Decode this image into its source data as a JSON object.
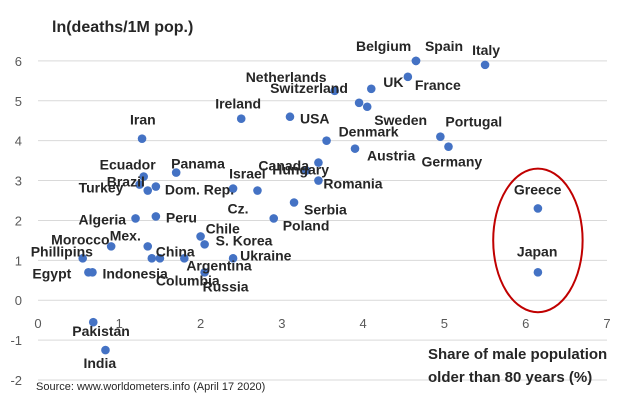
{
  "chart_data": {
    "type": "scatter",
    "ylabel": "ln(deaths/1M pop.)",
    "xlabel_lines": [
      "Share of male population",
      "older than 80 years (%)"
    ],
    "source": "Source: www.worldometers.info (April 17 2020)",
    "xlim": [
      0,
      7
    ],
    "ylim": [
      -2,
      7
    ],
    "x_ticks": [
      0,
      1,
      2,
      3,
      4,
      5,
      6,
      7
    ],
    "y_ticks": [
      -2,
      -1,
      0,
      1,
      2,
      3,
      4,
      5,
      6
    ],
    "grid": "horizontal",
    "marker_color": "#4472c4",
    "highlight_color": "#c00000",
    "highlight": {
      "label": "ellipse",
      "x_center": 6.15,
      "y_center": 1.5,
      "x_radius": 0.55,
      "y_radius": 1.8
    },
    "points": [
      {
        "label": "Belgium",
        "x": 4.65,
        "y": 6.0
      },
      {
        "label": "Spain",
        "x": 4.65,
        "y": 6.0
      },
      {
        "label": "Italy",
        "x": 5.5,
        "y": 5.9
      },
      {
        "label": "Netherlands",
        "x": 3.65,
        "y": 5.25
      },
      {
        "label": "France",
        "x": 4.55,
        "y": 5.6
      },
      {
        "label": "UK",
        "x": 4.1,
        "y": 5.3
      },
      {
        "label": "Switzerland",
        "x": 3.95,
        "y": 4.95
      },
      {
        "label": "Sweden",
        "x": 4.05,
        "y": 4.85
      },
      {
        "label": "Ireland",
        "x": 2.5,
        "y": 4.55
      },
      {
        "label": "USA",
        "x": 3.1,
        "y": 4.6
      },
      {
        "label": "Denmark",
        "x": 3.55,
        "y": 4.0
      },
      {
        "label": "Portugal",
        "x": 4.95,
        "y": 4.1
      },
      {
        "label": "Canada",
        "x": 3.45,
        "y": 3.45
      },
      {
        "label": "Austria",
        "x": 3.9,
        "y": 3.8
      },
      {
        "label": "Germany",
        "x": 5.05,
        "y": 3.85
      },
      {
        "label": "Iran",
        "x": 1.28,
        "y": 4.05
      },
      {
        "label": "Ecuador",
        "x": 1.3,
        "y": 3.1
      },
      {
        "label": "Panama",
        "x": 1.7,
        "y": 3.2
      },
      {
        "label": "Israel",
        "x": 2.4,
        "y": 2.8
      },
      {
        "label": "Turkey",
        "x": 1.25,
        "y": 2.9
      },
      {
        "label": "Dom. Rep.",
        "x": 1.45,
        "y": 2.85
      },
      {
        "label": "Hungary",
        "x": 3.3,
        "y": 3.25
      },
      {
        "label": "Romania",
        "x": 3.45,
        "y": 3.0
      },
      {
        "label": "Cz.",
        "x": 2.7,
        "y": 2.75
      },
      {
        "label": "Brazil",
        "x": 1.35,
        "y": 2.75
      },
      {
        "label": "Serbia",
        "x": 3.15,
        "y": 2.45
      },
      {
        "label": "Algeria",
        "x": 1.2,
        "y": 2.05
      },
      {
        "label": "Peru",
        "x": 1.45,
        "y": 2.1
      },
      {
        "label": "Chile",
        "x": 2.0,
        "y": 1.6
      },
      {
        "label": "Poland",
        "x": 2.9,
        "y": 2.05
      },
      {
        "label": "Morocco",
        "x": 0.9,
        "y": 1.35
      },
      {
        "label": "Mex.",
        "x": 1.35,
        "y": 1.35
      },
      {
        "label": "S. Korea",
        "x": 2.05,
        "y": 1.4
      },
      {
        "label": "Phillipins",
        "x": 0.55,
        "y": 1.05
      },
      {
        "label": "China",
        "x": 1.4,
        "y": 1.05
      },
      {
        "label": "Ukraine",
        "x": 2.4,
        "y": 1.05
      },
      {
        "label": "Egypt",
        "x": 0.62,
        "y": 0.7
      },
      {
        "label": "Indonesia",
        "x": 0.67,
        "y": 0.7
      },
      {
        "label": "Argentina",
        "x": 1.8,
        "y": 1.05
      },
      {
        "label": "Russia",
        "x": 2.05,
        "y": 0.7
      },
      {
        "label": "Columbia",
        "x": 1.5,
        "y": 1.05
      },
      {
        "label": "Pakistan",
        "x": 0.68,
        "y": -0.55
      },
      {
        "label": "India",
        "x": 0.83,
        "y": -1.25
      },
      {
        "label": "Greece",
        "x": 6.15,
        "y": 2.3
      },
      {
        "label": "Japan",
        "x": 6.15,
        "y": 0.7
      }
    ]
  }
}
